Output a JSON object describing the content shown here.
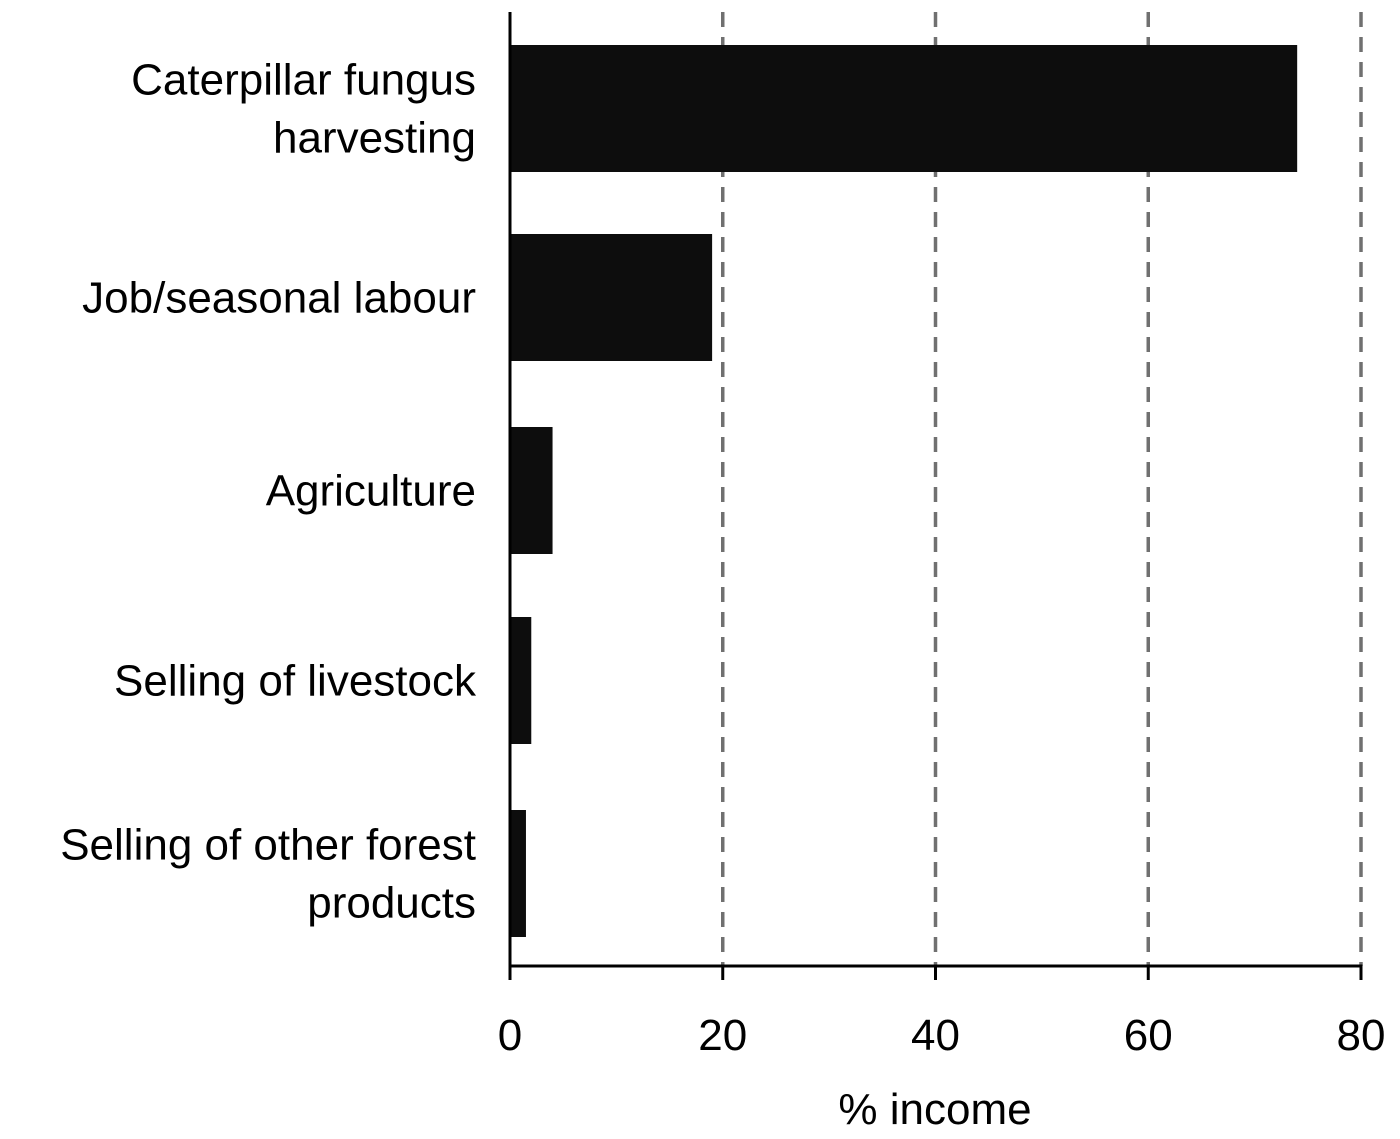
{
  "chart_data": {
    "type": "bar",
    "orientation": "horizontal",
    "categories": [
      [
        "Caterpillar fungus",
        "harvesting"
      ],
      [
        "Job/seasonal labour"
      ],
      [
        "Agriculture"
      ],
      [
        "Selling of livestock"
      ],
      [
        "Selling of other forest",
        "products"
      ]
    ],
    "values": [
      74,
      19,
      4,
      2,
      1.5
    ],
    "xlabel": "% income",
    "xlim": [
      0,
      80
    ],
    "xticks": [
      0,
      20,
      40,
      60,
      80
    ],
    "grid": "vertical dashed lines at ticks 20, 40, 60, 80",
    "colors": {
      "bar": "#0d0d0d",
      "grid": "#707070",
      "axis": "#000000"
    }
  }
}
